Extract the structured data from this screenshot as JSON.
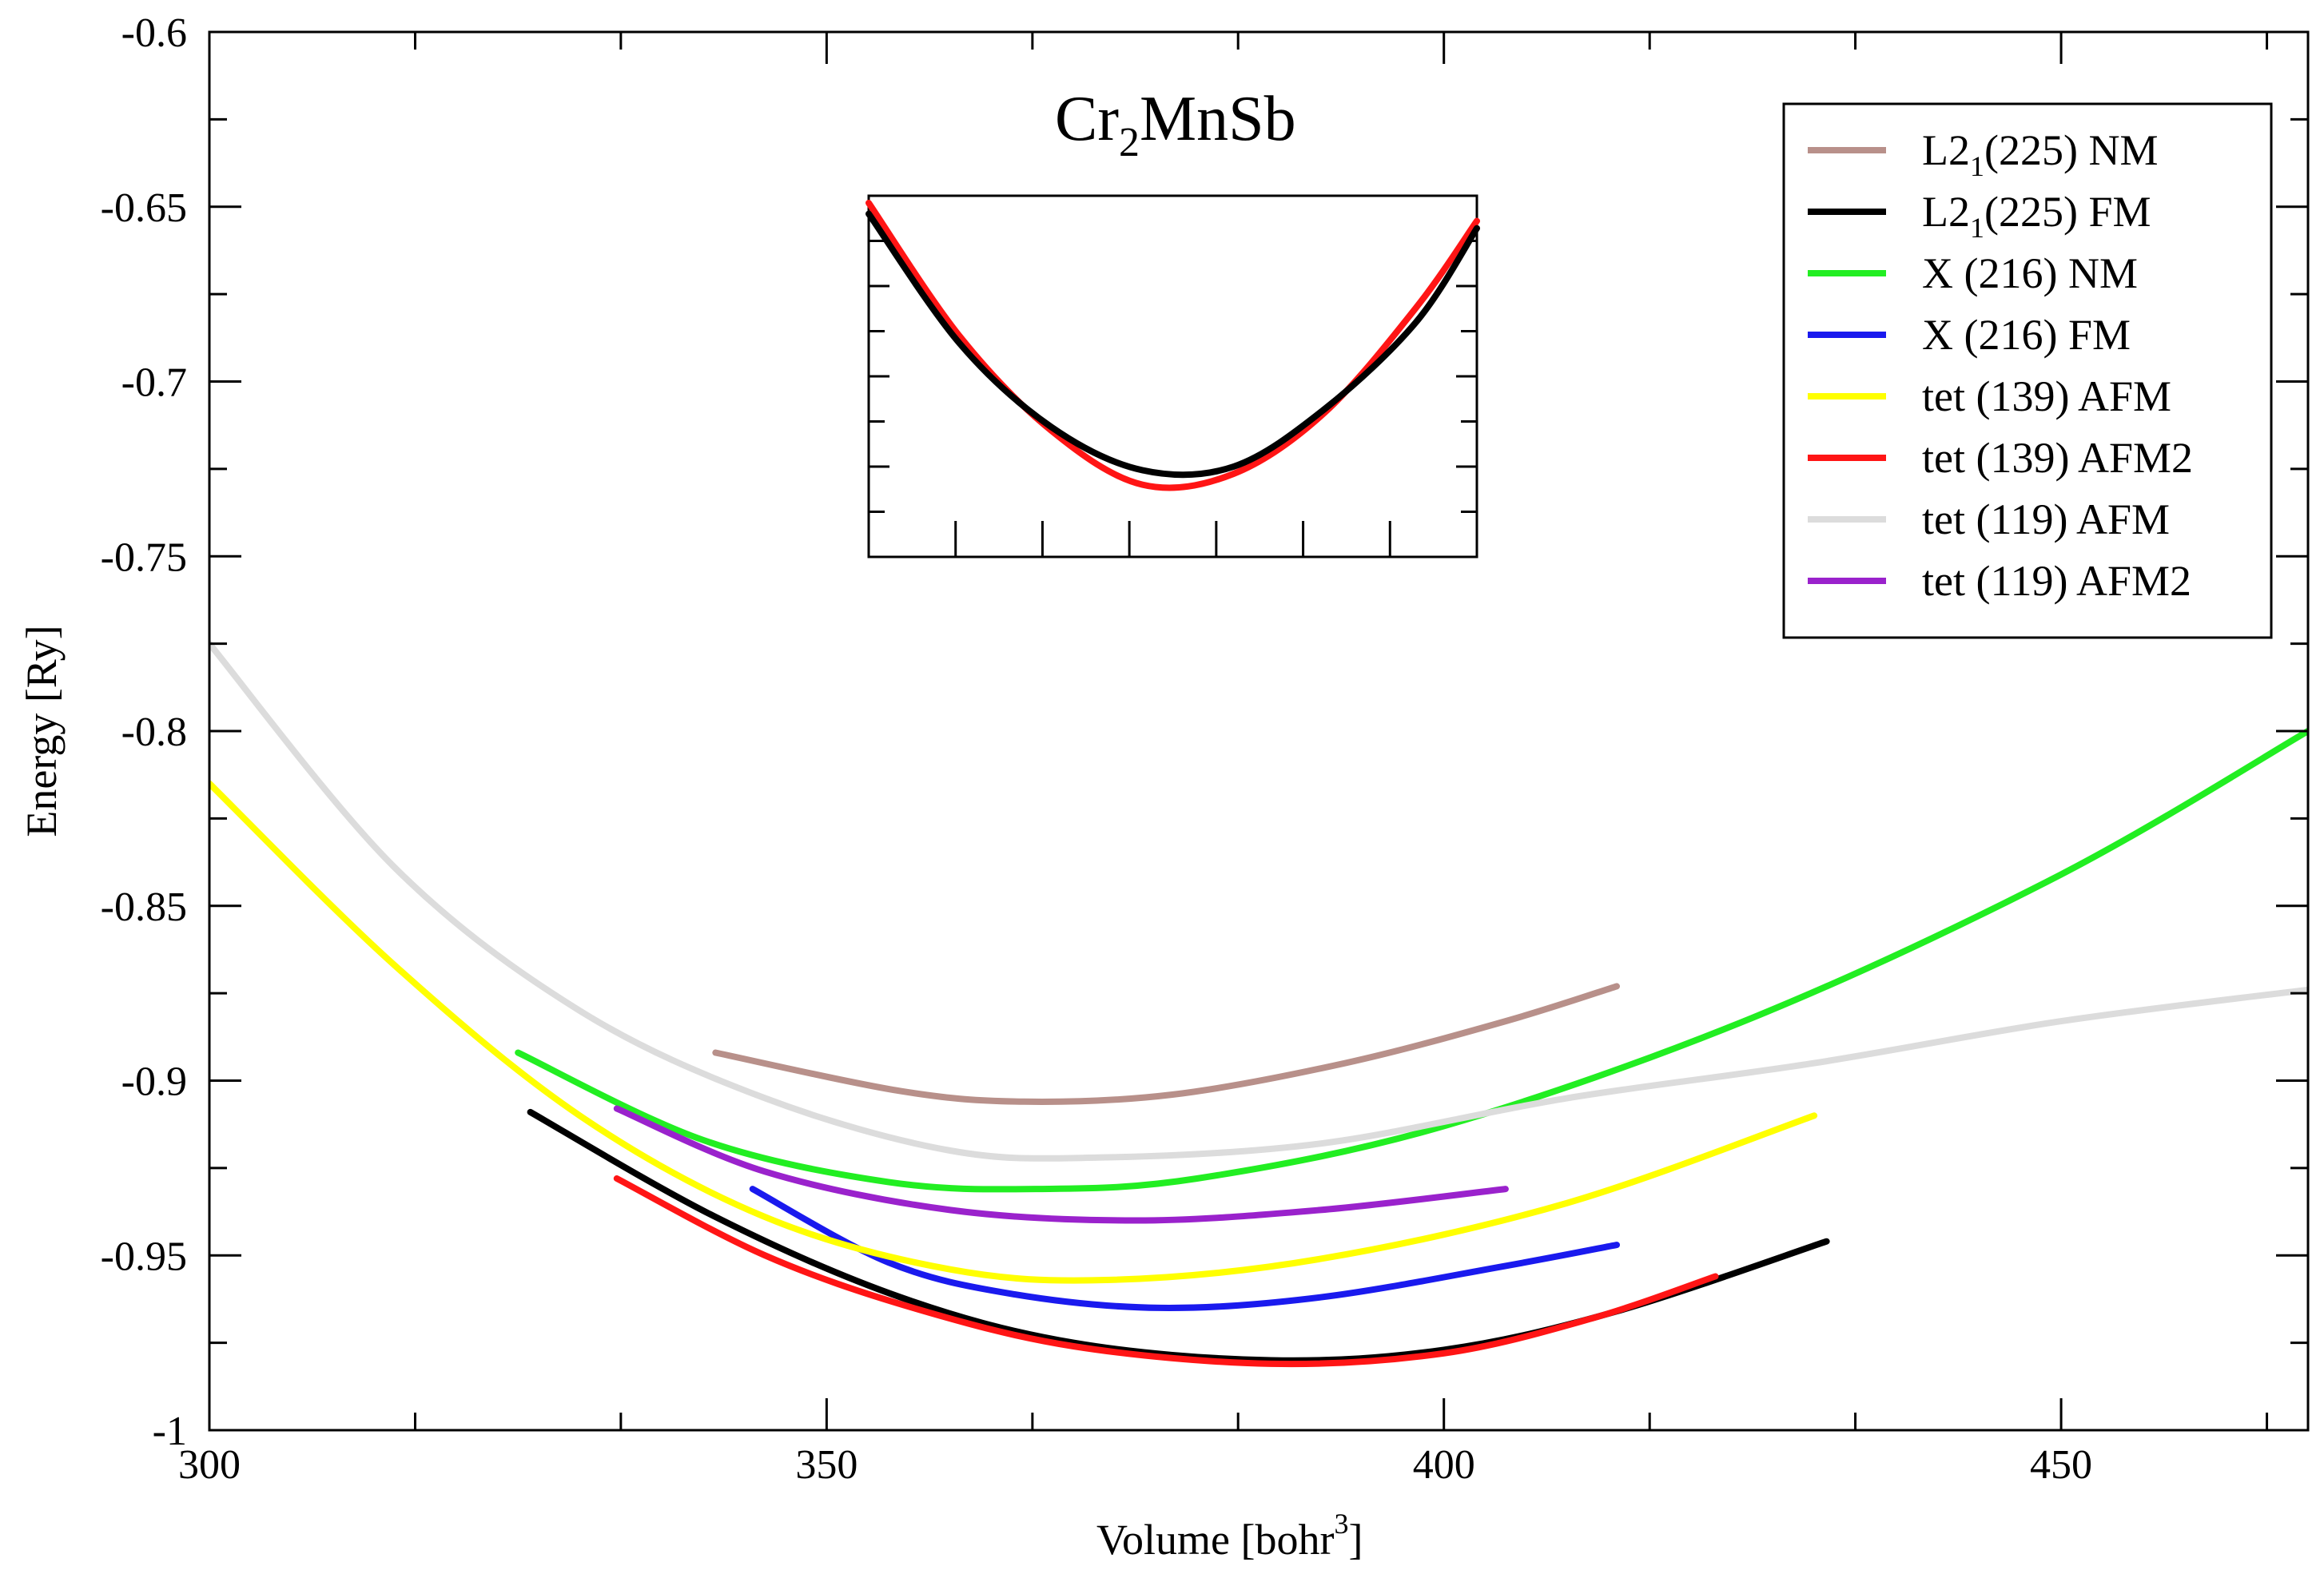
{
  "chart_data": {
    "type": "line",
    "title": {
      "main": "Cr",
      "sub1": "2",
      "rest": "MnSb"
    },
    "xlabel": {
      "main": "Volume [bohr",
      "sup": "3",
      "end": "]"
    },
    "ylabel": "Energy [Ry]",
    "xlim": [
      300,
      470
    ],
    "ylim": [
      -1,
      -0.6
    ],
    "xticks": [
      {
        "value": 300,
        "label": "300"
      },
      {
        "value": 350,
        "label": "350"
      },
      {
        "value": 400,
        "label": "400"
      },
      {
        "value": 450,
        "label": "450"
      }
    ],
    "xminor": [
      316.67,
      333.33,
      366.67,
      383.33,
      416.67,
      433.33,
      466.67
    ],
    "yticks": [
      {
        "value": -1,
        "label": "-1"
      },
      {
        "value": -0.95,
        "label": "-0.95"
      },
      {
        "value": -0.9,
        "label": "-0.9"
      },
      {
        "value": -0.85,
        "label": "-0.85"
      },
      {
        "value": -0.8,
        "label": "-0.8"
      },
      {
        "value": -0.75,
        "label": "-0.75"
      },
      {
        "value": -0.7,
        "label": "-0.7"
      },
      {
        "value": -0.65,
        "label": "-0.65"
      },
      {
        "value": -0.6,
        "label": "-0.6"
      }
    ],
    "grid": false,
    "legend_position": "top-right",
    "series": [
      {
        "name": "L2",
        "sub": "1",
        "tail": "(225) NM",
        "color": "#b8908a",
        "x": [
          341,
          356,
          366,
          378,
          392,
          405,
          414
        ],
        "y": [
          -0.892,
          -0.903,
          -0.906,
          -0.904,
          -0.895,
          -0.883,
          -0.873
        ]
      },
      {
        "name": "L2",
        "sub": "1",
        "tail": "(225) FM",
        "color": "#000000",
        "x": [
          326,
          341,
          356,
          370,
          386,
          400,
          414,
          431
        ],
        "y": [
          -0.909,
          -0.939,
          -0.962,
          -0.975,
          -0.98,
          -0.977,
          -0.966,
          -0.946
        ]
      },
      {
        "name": "X (216) NM",
        "color": "#22ee22",
        "x": [
          325,
          340,
          355,
          367,
          380,
          400,
          425,
          450,
          470
        ],
        "y": [
          -0.892,
          -0.917,
          -0.929,
          -0.931,
          -0.928,
          -0.913,
          -0.882,
          -0.841,
          -0.8
        ]
      },
      {
        "name": "X (216) FM",
        "color": "#1a1aee",
        "x": [
          344,
          355,
          365,
          377,
          390,
          405,
          414
        ],
        "y": [
          -0.931,
          -0.952,
          -0.961,
          -0.965,
          -0.962,
          -0.953,
          -0.947
        ]
      },
      {
        "name": "tet (139) AFM",
        "color": "#ffff00",
        "x": [
          300,
          315,
          330,
          345,
          360,
          373,
          390,
          410,
          430
        ],
        "y": [
          -0.815,
          -0.867,
          -0.91,
          -0.939,
          -0.954,
          -0.957,
          -0.951,
          -0.935,
          -0.91
        ]
      },
      {
        "name": "tet (139) AFM2",
        "color": "#ff1515",
        "x": [
          333,
          345,
          357,
          370,
          386,
          400,
          412,
          422
        ],
        "y": [
          -0.928,
          -0.95,
          -0.965,
          -0.976,
          -0.981,
          -0.978,
          -0.968,
          -0.956
        ]
      },
      {
        "name": "tet (119) AFM",
        "color": "#dcdcdc",
        "x": [
          300,
          315,
          330,
          345,
          360,
          372,
          390,
          410,
          430,
          450,
          470
        ],
        "y": [
          -0.775,
          -0.839,
          -0.88,
          -0.905,
          -0.92,
          -0.922,
          -0.918,
          -0.905,
          -0.895,
          -0.883,
          -0.874
        ]
      },
      {
        "name": "tet (119) AFM2",
        "color": "#9a22cc",
        "x": [
          333,
          345,
          360,
          375,
          390,
          405
        ],
        "y": [
          -0.908,
          -0.926,
          -0.937,
          -0.94,
          -0.937,
          -0.931
        ]
      }
    ],
    "inset": {
      "series": [
        {
          "name": "tet (139) AFM2",
          "color": "#ff1515",
          "x": [
            0,
            0.15,
            0.3,
            0.45,
            0.6,
            0.75,
            0.9,
            1
          ],
          "y": [
            0.02,
            0.39,
            0.65,
            0.8,
            0.77,
            0.6,
            0.31,
            0.07
          ]
        },
        {
          "name": "L2(225) FM",
          "color": "#000000",
          "x": [
            0,
            0.15,
            0.3,
            0.45,
            0.6,
            0.75,
            0.9,
            1
          ],
          "y": [
            0.05,
            0.41,
            0.64,
            0.76,
            0.75,
            0.59,
            0.35,
            0.09
          ]
        }
      ],
      "xticks_count": 6,
      "yticks_count": 7
    }
  }
}
